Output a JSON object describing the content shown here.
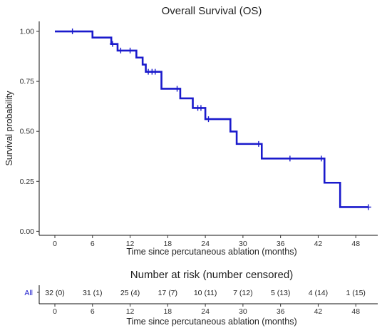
{
  "chart_data": [
    {
      "type": "line",
      "subtype": "kaplan-meier-step",
      "title": "Overall Survival (OS)",
      "xlabel": "Time since percutaneous ablation (months)",
      "ylabel": "Survival probability",
      "xlim": [
        -2.5,
        51.5
      ],
      "ylim": [
        -0.02,
        1.05
      ],
      "xticks": [
        0,
        6,
        12,
        18,
        24,
        30,
        36,
        42,
        48
      ],
      "xtick_labels": [
        "0",
        "6",
        "12",
        "18",
        "24",
        "30",
        "36",
        "42",
        "48"
      ],
      "yticks": [
        0,
        0.25,
        0.5,
        0.75,
        1.0
      ],
      "ytick_labels": [
        "0.00",
        "0.25",
        "0.50",
        "0.75",
        "1.00"
      ],
      "grid": false,
      "legend": false,
      "series": [
        {
          "color": "#1a1acc",
          "steps": [
            [
              0,
              1.0
            ],
            [
              6,
              0.969
            ],
            [
              9,
              0.937
            ],
            [
              10,
              0.904
            ],
            [
              13,
              0.869
            ],
            [
              14,
              0.834
            ],
            [
              14.5,
              0.798
            ],
            [
              17,
              0.713
            ],
            [
              20,
              0.665
            ],
            [
              22,
              0.617
            ],
            [
              24,
              0.561
            ],
            [
              28,
              0.499
            ],
            [
              29,
              0.437
            ],
            [
              33,
              0.364
            ],
            [
              43,
              0.243
            ],
            [
              45.5,
              0.121
            ],
            [
              50,
              0.121
            ]
          ],
          "censored": [
            [
              2.8,
              1.0
            ],
            [
              9.2,
              0.937
            ],
            [
              10.5,
              0.904
            ],
            [
              12.0,
              0.904
            ],
            [
              14.9,
              0.798
            ],
            [
              15.5,
              0.798
            ],
            [
              16.0,
              0.798
            ],
            [
              19.5,
              0.713
            ],
            [
              22.8,
              0.617
            ],
            [
              23.3,
              0.617
            ],
            [
              24.5,
              0.561
            ],
            [
              32.5,
              0.437
            ],
            [
              37.5,
              0.364
            ],
            [
              42.5,
              0.364
            ],
            [
              50.0,
              0.121
            ]
          ]
        }
      ]
    },
    {
      "type": "table",
      "title": "Number at risk (number censored)",
      "row_label": "All",
      "row_label_color": "#1a1acc",
      "xlabel": "Time since percutaneous ablation (months)",
      "xlim": [
        -2.5,
        51.5
      ],
      "xticks": [
        0,
        6,
        12,
        18,
        24,
        30,
        36,
        42,
        48
      ],
      "xtick_labels": [
        "0",
        "6",
        "12",
        "18",
        "24",
        "30",
        "36",
        "42",
        "48"
      ],
      "cells": [
        "32 (0)",
        "31 (1)",
        "25 (4)",
        "17 (7)",
        "10 (11)",
        "7 (12)",
        "5 (13)",
        "4 (14)",
        "1 (15)"
      ]
    }
  ]
}
